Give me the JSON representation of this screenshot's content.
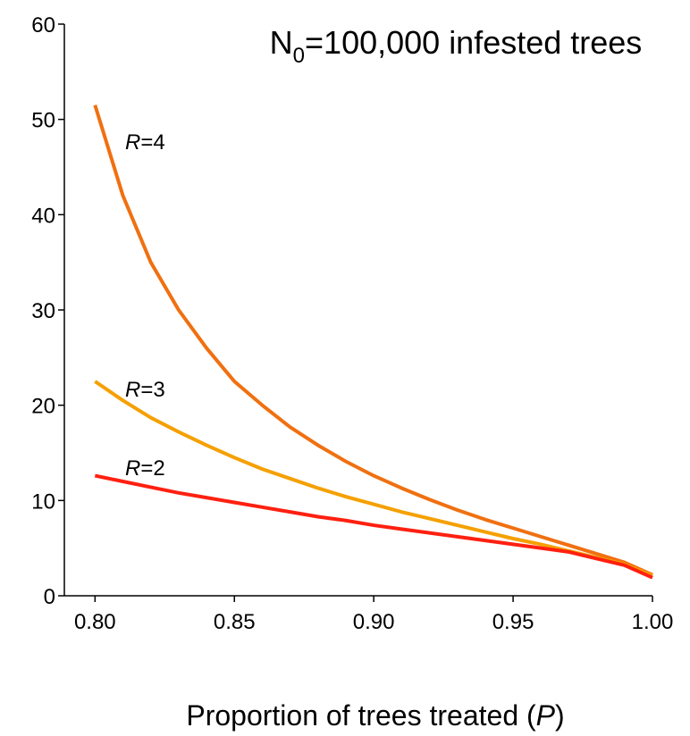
{
  "chart_data": {
    "type": "line",
    "title": {
      "main": "N",
      "subscript": "0",
      "rest": "=100,000 infested trees"
    },
    "x_label": {
      "before": "Proportion of trees treated (",
      "italic": "P",
      "after": ")"
    },
    "x": [
      0.8,
      0.81,
      0.82,
      0.83,
      0.84,
      0.85,
      0.86,
      0.87,
      0.88,
      0.89,
      0.9,
      0.91,
      0.92,
      0.93,
      0.94,
      0.95,
      0.96,
      0.97,
      0.98,
      0.99,
      1.0
    ],
    "series": [
      {
        "name": "R=4",
        "color": "#f07010",
        "values": [
          51.5,
          42,
          35,
          30,
          26,
          22.5,
          20,
          17.7,
          15.8,
          14.1,
          12.6,
          11.3,
          10.1,
          9.0,
          8.0,
          7.1,
          6.2,
          5.3,
          4.4,
          3.5,
          2.2
        ]
      },
      {
        "name": "R=3",
        "color": "#f5a000",
        "values": [
          22.5,
          20.5,
          18.7,
          17.2,
          15.8,
          14.5,
          13.3,
          12.3,
          11.3,
          10.4,
          9.6,
          8.8,
          8.1,
          7.4,
          6.7,
          6.0,
          5.4,
          4.7,
          4.0,
          3.3,
          2.1
        ]
      },
      {
        "name": "R=2",
        "color": "#ff2010",
        "values": [
          12.6,
          12.0,
          11.4,
          10.8,
          10.3,
          9.8,
          9.3,
          8.8,
          8.3,
          7.9,
          7.4,
          7.0,
          6.6,
          6.2,
          5.8,
          5.4,
          5.0,
          4.6,
          3.9,
          3.2,
          1.9
        ]
      }
    ],
    "xlim": [
      0.789,
      1.0
    ],
    "xticks": [
      {
        "value": 0.8,
        "label": "0.80"
      },
      {
        "value": 0.85,
        "label": "0.85"
      },
      {
        "value": 0.9,
        "label": "0.90"
      },
      {
        "value": 0.95,
        "label": "0.95"
      },
      {
        "value": 1.0,
        "label": "1.00"
      }
    ],
    "ylim": [
      0,
      60
    ],
    "yticks": [
      0,
      10,
      20,
      30,
      40,
      50,
      60
    ],
    "grid": false
  }
}
